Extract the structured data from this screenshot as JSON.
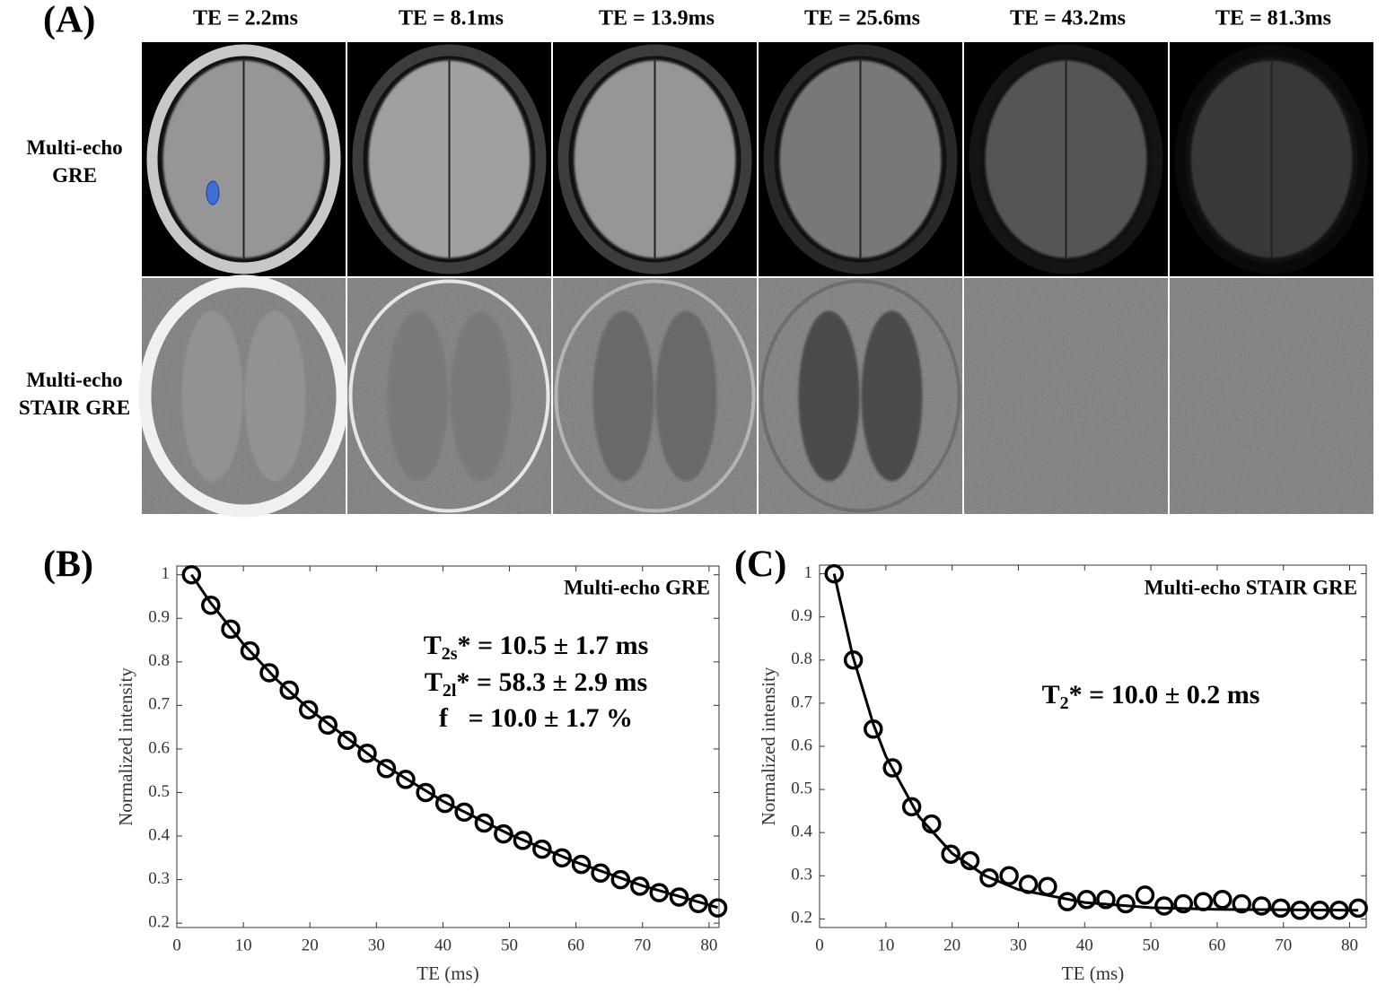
{
  "panel_a": {
    "label": "(A)",
    "te_labels": [
      "TE = 2.2ms",
      "TE = 8.1ms",
      "TE = 13.9ms",
      "TE = 25.6ms",
      "TE = 43.2ms",
      "TE = 81.3ms"
    ],
    "row_labels": [
      [
        "Multi-echo",
        "GRE"
      ],
      [
        "Multi-echo",
        "STAIR GRE"
      ]
    ]
  },
  "chart_data": [
    {
      "type": "scatter",
      "label": "(B)",
      "title": "Multi-echo GRE",
      "x_label": "TE (ms)",
      "y_label": "Normalized intensity",
      "annotations": [
        {
          "text": "T",
          "sub": "2s",
          "rest": "* = 10.5 ± 1.7 ms"
        },
        {
          "text": "T",
          "sub": "2l",
          "rest": "* = 58.3 ± 2.9 ms"
        },
        {
          "text": "f   = 10.0 ± 1.7 %"
        }
      ],
      "x": [
        2.2,
        5.1,
        8.1,
        11.0,
        13.9,
        16.9,
        19.8,
        22.7,
        25.6,
        28.6,
        31.5,
        34.4,
        37.4,
        40.3,
        43.2,
        46.2,
        49.1,
        52.0,
        54.9,
        57.9,
        60.8,
        63.7,
        66.7,
        69.6,
        72.5,
        75.5,
        78.4,
        81.3
      ],
      "values": [
        1.0,
        0.93,
        0.875,
        0.825,
        0.775,
        0.735,
        0.69,
        0.655,
        0.62,
        0.59,
        0.555,
        0.53,
        0.5,
        0.475,
        0.455,
        0.43,
        0.405,
        0.39,
        0.37,
        0.35,
        0.335,
        0.315,
        0.3,
        0.285,
        0.27,
        0.26,
        0.245,
        0.235
      ],
      "fit_x": [
        2.2,
        5,
        10,
        15,
        20,
        30,
        40,
        50,
        60,
        70,
        81.3
      ],
      "fit_values": [
        1.0,
        0.937,
        0.841,
        0.759,
        0.69,
        0.574,
        0.48,
        0.404,
        0.34,
        0.286,
        0.236
      ],
      "color": "#000000",
      "xlim": [
        0,
        81.5
      ],
      "xticks": [
        0,
        10,
        20,
        30,
        40,
        50,
        60,
        70,
        80
      ],
      "ylim": [
        0.19,
        1.02
      ],
      "yticks": [
        0.2,
        0.3,
        0.4,
        0.5,
        0.6,
        0.7,
        0.8,
        0.9,
        1
      ]
    },
    {
      "type": "scatter",
      "label": "(C)",
      "title": "Multi-echo STAIR GRE",
      "x_label": "TE (ms)",
      "y_label": "Normalized intensity",
      "annotations": [
        {
          "text": "T",
          "sub": "2",
          "rest": "* = 10.0 ± 0.2 ms"
        }
      ],
      "x": [
        2.2,
        5.1,
        8.1,
        11.0,
        13.9,
        16.9,
        19.8,
        22.7,
        25.6,
        28.6,
        31.5,
        34.4,
        37.4,
        40.3,
        43.2,
        46.2,
        49.1,
        52.0,
        54.9,
        57.9,
        60.8,
        63.7,
        66.7,
        69.6,
        72.5,
        75.5,
        78.4,
        81.3
      ],
      "values": [
        1.0,
        0.8,
        0.64,
        0.55,
        0.46,
        0.42,
        0.35,
        0.335,
        0.295,
        0.3,
        0.28,
        0.275,
        0.24,
        0.245,
        0.245,
        0.235,
        0.255,
        0.23,
        0.235,
        0.24,
        0.245,
        0.235,
        0.23,
        0.225,
        0.22,
        0.22,
        0.22,
        0.225
      ],
      "fit_x": [
        2.2,
        5,
        8.1,
        10,
        15,
        20,
        25,
        30,
        40,
        50,
        60,
        81.3
      ],
      "fit_values": [
        1.0,
        0.81,
        0.652,
        0.577,
        0.437,
        0.352,
        0.3,
        0.268,
        0.238,
        0.226,
        0.222,
        0.22
      ],
      "color": "#000000",
      "xlim": [
        0,
        82.5
      ],
      "xticks": [
        0,
        10,
        20,
        30,
        40,
        50,
        60,
        70,
        80
      ],
      "ylim": [
        0.18,
        1.02
      ],
      "yticks": [
        0.2,
        0.3,
        0.4,
        0.5,
        0.6,
        0.7,
        0.8,
        0.9,
        1
      ]
    }
  ]
}
